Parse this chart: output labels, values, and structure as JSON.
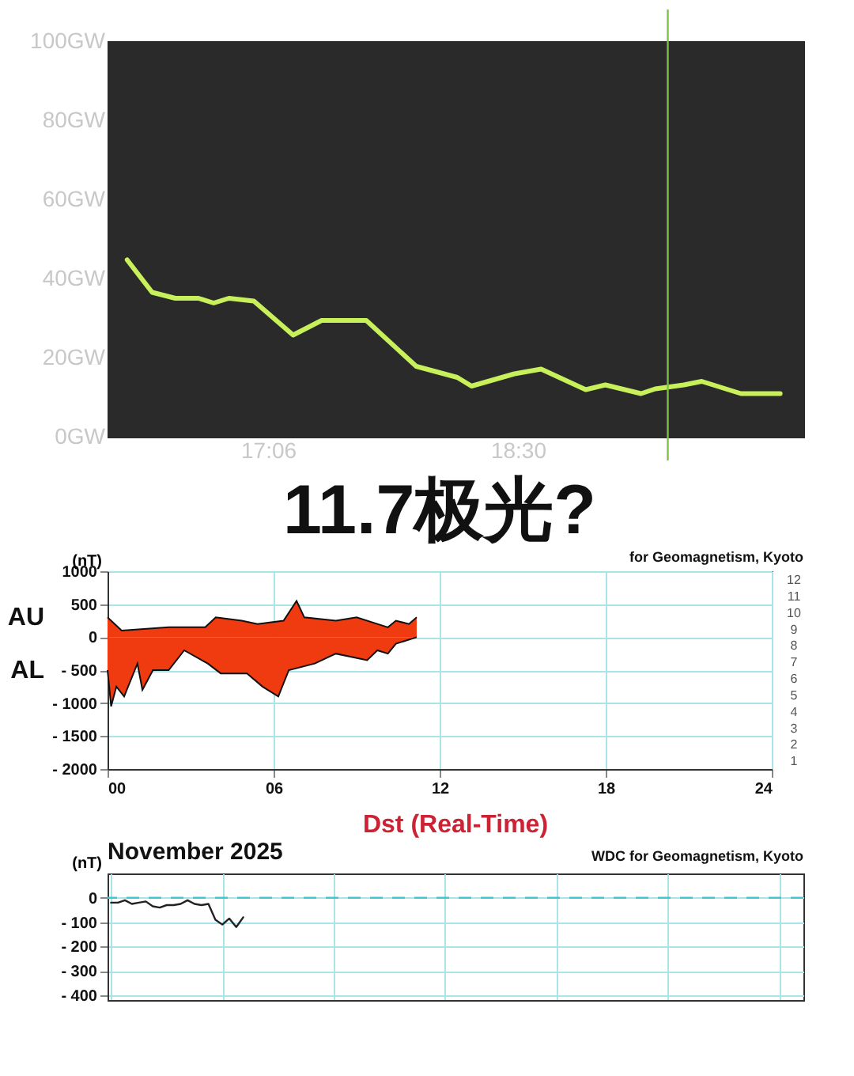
{
  "chart_data": [
    {
      "type": "line",
      "series": [
        {
          "color": "#c8f05a",
          "x": [
            16.31,
            16.45,
            16.58,
            16.71,
            16.795,
            16.88,
            17.02,
            17.24,
            17.4,
            17.65,
            17.93,
            18.16,
            18.24,
            18.48,
            18.63,
            18.88,
            18.99,
            19.19,
            19.27,
            19.43,
            19.53,
            19.75,
            19.97
          ],
          "values": [
            44.7,
            36.5,
            35,
            35,
            33.8,
            35,
            34.3,
            25.7,
            29.4,
            29.4,
            17.8,
            15,
            12.8,
            15.9,
            17.1,
            11.9,
            13.1,
            10.9,
            12.1,
            13.1,
            14,
            10.9,
            10.9
          ]
        }
      ],
      "xlim": [
        16.2,
        20.1
      ],
      "xticks": [
        {
          "value": 17.1,
          "label": "17:06"
        },
        {
          "value": 18.5,
          "label": "18:30"
        }
      ],
      "ylim": [
        0,
        100
      ],
      "yticks": [
        {
          "value": 0,
          "label": "0GW"
        },
        {
          "value": 20,
          "label": "20GW"
        },
        {
          "value": 40,
          "label": "40GW"
        },
        {
          "value": 60,
          "label": "60GW"
        },
        {
          "value": 80,
          "label": "80GW"
        },
        {
          "value": 100,
          "label": "100GW"
        }
      ],
      "ref_lines": [
        {
          "axis": "x",
          "value": 19.34,
          "color": "#7cc04a"
        }
      ],
      "grid": false
    },
    {
      "type": "area",
      "title": "11.7极光?",
      "ylabel": "(nT)",
      "series": [
        {
          "name": "AU",
          "color": "#f03a10",
          "x": [
            0,
            0.51,
            2.21,
            3.53,
            3.91,
            4.85,
            5.42,
            6.36,
            6.83,
            7.11,
            8.25,
            9.0,
            9.75,
            10.13,
            10.42,
            10.89,
            11.17
          ],
          "values": [
            300,
            100,
            150,
            150,
            300,
            250,
            200,
            250,
            550,
            300,
            250,
            300,
            200,
            150,
            250,
            200,
            300
          ]
        },
        {
          "name": "AL",
          "color": "#f03a10",
          "x": [
            0,
            0.13,
            0.32,
            0.6,
            1.08,
            1.26,
            1.64,
            2.21,
            2.77,
            3.62,
            4.09,
            5.04,
            5.6,
            6.17,
            6.55,
            7.49,
            8.25,
            9.38,
            9.75,
            10.13,
            10.42,
            11.17
          ],
          "values": [
            -500,
            -1050,
            -750,
            -900,
            -400,
            -800,
            -500,
            -500,
            -200,
            -400,
            -550,
            -550,
            -750,
            -900,
            -500,
            -400,
            -250,
            -350,
            -200,
            -250,
            -100,
            0
          ]
        }
      ],
      "xlim": [
        0,
        24
      ],
      "xticks": [
        {
          "value": 0,
          "label": "00"
        },
        {
          "value": 6,
          "label": "06"
        },
        {
          "value": 12,
          "label": "12"
        },
        {
          "value": 18,
          "label": "18"
        },
        {
          "value": 24,
          "label": "24"
        }
      ],
      "ylim": [
        -2000,
        1000
      ],
      "yticks": [
        {
          "value": -2000,
          "label": "- 2000"
        },
        {
          "value": -1500,
          "label": "- 1500"
        },
        {
          "value": -1000,
          "label": "- 1000"
        },
        {
          "value": -500,
          "label": "- 500"
        },
        0,
        500,
        1000
      ],
      "grid": true,
      "annotations": [
        "for Geomagnetism, Kyoto",
        "12",
        "11",
        "10",
        "9",
        "8",
        "7",
        "6",
        "5",
        "4",
        "3",
        "2",
        "1"
      ]
    },
    {
      "type": "line",
      "title": "Dst (Real-Time)",
      "ylabel": "(nT)",
      "categories": [
        null,
        null,
        null,
        null,
        null,
        null,
        null,
        null,
        null,
        null,
        null,
        null,
        null,
        null,
        null,
        null,
        null,
        null,
        null,
        null,
        null,
        null,
        null,
        null,
        null,
        null,
        null,
        null,
        null,
        null,
        null,
        null,
        null,
        null,
        null,
        null,
        null,
        null,
        null,
        null,
        null,
        null,
        null,
        null,
        null,
        null,
        null,
        null,
        null,
        null,
        null,
        null,
        null,
        null,
        null,
        null,
        null,
        null,
        null,
        null,
        null,
        null,
        null,
        null,
        null,
        null,
        null,
        null,
        null,
        null,
        null,
        null,
        null,
        null,
        null,
        null,
        null,
        null,
        null,
        null,
        null,
        null,
        null,
        null,
        null,
        null,
        null,
        null,
        null,
        null,
        null,
        null,
        null,
        null,
        null,
        null,
        null,
        null,
        null,
        null
      ],
      "series": [
        {
          "color": "#222222",
          "values": [
            -20,
            -20,
            -10,
            -25,
            -20,
            -15,
            -35,
            -40,
            -30,
            -30,
            -25,
            -10,
            -25,
            -30,
            -25,
            -90,
            -110,
            -85,
            -120,
            -80,
            null,
            null,
            null,
            null,
            null,
            null,
            null,
            null,
            null,
            null,
            null,
            null,
            null,
            null,
            null,
            null,
            null,
            null,
            null,
            null,
            null,
            null,
            null,
            null,
            null,
            null,
            null,
            null,
            null,
            null,
            null,
            null,
            null,
            null,
            null,
            null,
            null,
            null,
            null,
            null,
            null,
            null,
            null,
            null,
            null,
            null,
            null,
            null,
            null,
            null,
            null,
            null,
            null,
            null,
            null,
            null,
            null,
            null,
            null,
            null,
            null,
            null,
            null,
            null,
            null,
            null,
            null,
            null,
            null,
            null,
            null,
            null,
            null,
            null,
            null,
            null,
            null,
            null,
            null,
            null
          ]
        }
      ],
      "ylim": [
        -420,
        100
      ],
      "yticks": [
        {
          "value": -400,
          "label": "- 400"
        },
        {
          "value": -300,
          "label": "- 300"
        },
        {
          "value": -200,
          "label": "- 200"
        },
        {
          "value": -100,
          "label": "- 100"
        },
        0
      ],
      "tick_labels": "y",
      "grid": true,
      "ref_lines": [
        {
          "axis": "y",
          "value": 0,
          "color": "#40c8d0",
          "line_style": "dashed"
        }
      ],
      "annotations": [
        "November  2025",
        "WDC for Geomagnetism, Kyoto"
      ]
    }
  ]
}
